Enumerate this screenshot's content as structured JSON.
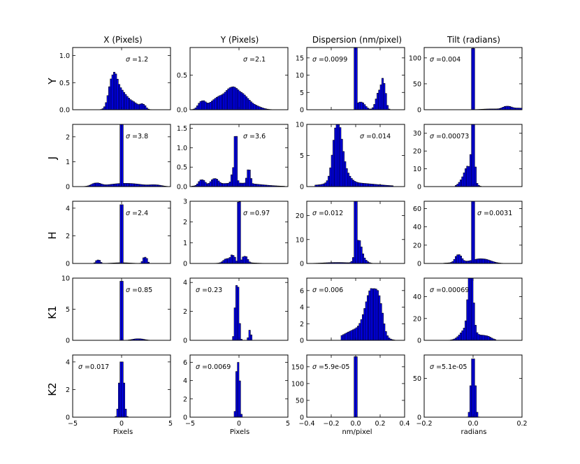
{
  "figure": {
    "column_titles": [
      "X (Pixels)",
      "Y (Pixels)",
      "Dispersion (nm/pixel)",
      "Tilt (radians)"
    ],
    "row_labels": [
      "Y",
      "J",
      "H",
      "K1",
      "K2"
    ],
    "x_axis_labels": [
      "Pixels",
      "Pixels",
      "nm/pixel",
      "radians"
    ],
    "x_tick_labels": [
      [
        "−5",
        "0",
        "5"
      ],
      [
        "−5",
        "0",
        "5"
      ],
      [
        "−0.4",
        "−0.2",
        "0.0",
        "0.2",
        "0.4"
      ],
      [
        "−0.2",
        "0.0",
        "0.2"
      ]
    ],
    "sigma_symbol": "σ",
    "colors": {
      "fill": "#0000ff",
      "edge": "#000000",
      "frame": "#000000",
      "background": "#ffffff"
    }
  },
  "chart_data": [
    {
      "type": "bar",
      "row": "Y",
      "column": "X (Pixels)",
      "xlim": [
        -5,
        5
      ],
      "ylim": [
        0,
        1.15
      ],
      "yticks": [
        "0.0",
        "0.5",
        "1.0"
      ],
      "ytick_values": [
        0,
        0.5,
        1.0
      ],
      "sigma": "=1.2",
      "components": [
        {
          "mu": -0.9,
          "s": 0.35,
          "a": 0.45
        },
        {
          "mu": -0.3,
          "s": 0.55,
          "a": 0.3
        },
        {
          "mu": 0.9,
          "s": 0.7,
          "a": 0.15
        },
        {
          "mu": 2.2,
          "s": 0.2,
          "a": 0.07
        }
      ],
      "range": [
        -3,
        3.6
      ]
    },
    {
      "type": "bar",
      "row": "Y",
      "column": "Y (Pixels)",
      "xlim": [
        -5,
        5
      ],
      "ylim": [
        0,
        0.9
      ],
      "yticks": [
        "0.0",
        "0.5"
      ],
      "ytick_values": [
        0,
        0.5
      ],
      "sigma": "=2.1",
      "components": [
        {
          "mu": -3.8,
          "s": 0.3,
          "a": 0.1
        },
        {
          "mu": -1.7,
          "s": 1.0,
          "a": 0.2
        },
        {
          "mu": -0.8,
          "s": 0.4,
          "a": 0.08
        },
        {
          "mu": 0.1,
          "s": 0.7,
          "a": 0.2
        },
        {
          "mu": 1.5,
          "s": 0.7,
          "a": 0.05
        }
      ],
      "range": [
        -4.7,
        3.5
      ]
    },
    {
      "type": "bar",
      "row": "Y",
      "column": "Dispersion (nm/pixel)",
      "xlim": [
        -0.4,
        0.4
      ],
      "ylim": [
        0,
        18
      ],
      "yticks": [
        "0",
        "5",
        "10",
        "15"
      ],
      "ytick_values": [
        0,
        5,
        10,
        15
      ],
      "sigma": "=0.0099",
      "components": [
        {
          "mu": 0.0,
          "s": 0.002,
          "a": 17
        },
        {
          "mu": 0.04,
          "s": 0.03,
          "a": 2.2
        },
        {
          "mu": 0.2,
          "s": 0.025,
          "a": 5.5
        },
        {
          "mu": 0.23,
          "s": 0.012,
          "a": 4.5
        }
      ],
      "range": [
        -0.01,
        0.27
      ]
    },
    {
      "type": "bar",
      "row": "Y",
      "column": "Tilt (radians)",
      "xlim": [
        -0.2,
        0.2
      ],
      "ylim": [
        0,
        120
      ],
      "yticks": [
        "0",
        "50",
        "100"
      ],
      "ytick_values": [
        0,
        50,
        100
      ],
      "sigma": "=0.004",
      "components": [
        {
          "mu": 0.0,
          "s": 0.0012,
          "a": 118
        },
        {
          "mu": 0.14,
          "s": 0.015,
          "a": 6
        },
        {
          "mu": 0.19,
          "s": 0.02,
          "a": 3
        },
        {
          "mu": 0.08,
          "s": 0.04,
          "a": 1.5
        }
      ],
      "range": [
        -0.01,
        0.2
      ]
    },
    {
      "type": "bar",
      "row": "J",
      "column": "X (Pixels)",
      "xlim": [
        -5,
        5
      ],
      "ylim": [
        0,
        2.5
      ],
      "yticks": [
        "0",
        "1",
        "2"
      ],
      "ytick_values": [
        0,
        1,
        2
      ],
      "sigma": "=3.8",
      "components": [
        {
          "mu": 0.0,
          "s": 0.02,
          "a": 2.45
        },
        {
          "mu": -2.6,
          "s": 0.4,
          "a": 0.12
        },
        {
          "mu": 0.4,
          "s": 1.6,
          "a": 0.13
        },
        {
          "mu": 3.5,
          "s": 0.5,
          "a": 0.05
        }
      ],
      "range": [
        -4.8,
        4.6
      ]
    },
    {
      "type": "bar",
      "row": "J",
      "column": "Y (Pixels)",
      "xlim": [
        -5,
        5
      ],
      "ylim": [
        0,
        1.6
      ],
      "yticks": [
        "0.0",
        "0.5",
        "1.0",
        "1.5"
      ],
      "ytick_values": [
        0,
        0.5,
        1.0,
        1.5
      ],
      "sigma": "=3.6",
      "components": [
        {
          "mu": -0.3,
          "s": 0.05,
          "a": 1.0
        },
        {
          "mu": -0.5,
          "s": 0.15,
          "a": 0.4
        },
        {
          "mu": 1.0,
          "s": 0.12,
          "a": 0.35
        },
        {
          "mu": -2.5,
          "s": 0.3,
          "a": 0.15
        },
        {
          "mu": -3.8,
          "s": 0.25,
          "a": 0.15
        },
        {
          "mu": -0.2,
          "s": 2.2,
          "a": 0.09
        }
      ],
      "range": [
        -4.7,
        4.5
      ]
    },
    {
      "type": "bar",
      "row": "J",
      "column": "Dispersion (nm/pixel)",
      "xlim": [
        -0.4,
        0.4
      ],
      "ylim": [
        0,
        10
      ],
      "yticks": [
        "0",
        "5",
        "10"
      ],
      "ytick_values": [
        0,
        5,
        10
      ],
      "sigma": "=0.014",
      "components": [
        {
          "mu": -0.15,
          "s": 0.03,
          "a": 7.5
        },
        {
          "mu": -0.12,
          "s": 0.05,
          "a": 2.5
        },
        {
          "mu": -0.05,
          "s": 0.2,
          "a": 0.6
        }
      ],
      "range": [
        -0.33,
        0.3
      ]
    },
    {
      "type": "bar",
      "row": "J",
      "column": "Tilt (radians)",
      "xlim": [
        -0.2,
        0.2
      ],
      "ylim": [
        0,
        35
      ],
      "yticks": [
        "0",
        "10",
        "20",
        "30"
      ],
      "ytick_values": [
        0,
        10,
        20,
        30
      ],
      "sigma": "=0.00073",
      "components": [
        {
          "mu": 0.0,
          "s": 0.004,
          "a": 30
        },
        {
          "mu": -0.015,
          "s": 0.015,
          "a": 10
        },
        {
          "mu": -0.04,
          "s": 0.015,
          "a": 3
        }
      ],
      "range": [
        -0.07,
        0.03
      ]
    },
    {
      "type": "bar",
      "row": "H",
      "column": "X (Pixels)",
      "xlim": [
        -5,
        5
      ],
      "ylim": [
        0,
        4.5
      ],
      "yticks": [
        "0",
        "2",
        "4"
      ],
      "ytick_values": [
        0,
        2,
        4
      ],
      "sigma": "=2.4",
      "components": [
        {
          "mu": 0.0,
          "s": 0.02,
          "a": 4.2
        },
        {
          "mu": -2.4,
          "s": 0.15,
          "a": 0.25
        },
        {
          "mu": 2.4,
          "s": 0.15,
          "a": 0.45
        },
        {
          "mu": 0.0,
          "s": 0.8,
          "a": 0.05
        }
      ],
      "range": [
        -3.5,
        3.5
      ]
    },
    {
      "type": "bar",
      "row": "H",
      "column": "Y (Pixels)",
      "xlim": [
        -5,
        5
      ],
      "ylim": [
        0,
        3
      ],
      "yticks": [
        "0",
        "1",
        "2",
        "3"
      ],
      "ytick_values": [
        0,
        1,
        2,
        3
      ],
      "sigma": "=0.97",
      "components": [
        {
          "mu": 0.0,
          "s": 0.02,
          "a": 2.9
        },
        {
          "mu": -0.6,
          "s": 0.15,
          "a": 0.3
        },
        {
          "mu": 0.6,
          "s": 0.2,
          "a": 0.3
        },
        {
          "mu": -1.2,
          "s": 0.3,
          "a": 0.2
        },
        {
          "mu": 0.0,
          "s": 1.2,
          "a": 0.05
        }
      ],
      "range": [
        -3.5,
        3.5
      ]
    },
    {
      "type": "bar",
      "row": "H",
      "column": "Dispersion (nm/pixel)",
      "xlim": [
        -0.4,
        0.4
      ],
      "ylim": [
        0,
        26
      ],
      "yticks": [
        "0",
        "10",
        "20"
      ],
      "ytick_values": [
        0,
        10,
        20
      ],
      "sigma": "=0.012",
      "components": [
        {
          "mu": 0.0,
          "s": 0.004,
          "a": 25
        },
        {
          "mu": 0.02,
          "s": 0.02,
          "a": 8
        },
        {
          "mu": 0.05,
          "s": 0.03,
          "a": 2
        },
        {
          "mu": -0.15,
          "s": 0.1,
          "a": 0.4
        }
      ],
      "range": [
        -0.38,
        0.28
      ]
    },
    {
      "type": "bar",
      "row": "H",
      "column": "Tilt (radians)",
      "xlim": [
        -0.2,
        0.2
      ],
      "ylim": [
        0,
        68
      ],
      "yticks": [
        "0",
        "20",
        "40",
        "60"
      ],
      "ytick_values": [
        0,
        20,
        40,
        60
      ],
      "sigma": "=0.0031",
      "components": [
        {
          "mu": 0.0,
          "s": 0.0015,
          "a": 68
        },
        {
          "mu": -0.06,
          "s": 0.01,
          "a": 8
        },
        {
          "mu": 0.04,
          "s": 0.03,
          "a": 4
        },
        {
          "mu": -0.02,
          "s": 0.05,
          "a": 2
        }
      ],
      "range": [
        -0.12,
        0.18
      ]
    },
    {
      "type": "bar",
      "row": "K1",
      "column": "X (Pixels)",
      "xlim": [
        -5,
        5
      ],
      "ylim": [
        0,
        10
      ],
      "yticks": [
        "0",
        "5",
        "10"
      ],
      "ytick_values": [
        0,
        5,
        10
      ],
      "sigma": "=0.85",
      "components": [
        {
          "mu": 0.0,
          "s": 0.02,
          "a": 9.5
        },
        {
          "mu": 1.7,
          "s": 0.5,
          "a": 0.25
        }
      ],
      "range": [
        -0.5,
        3.2
      ]
    },
    {
      "type": "bar",
      "row": "K1",
      "column": "Y (Pixels)",
      "xlim": [
        -5,
        5
      ],
      "ylim": [
        0,
        4.3
      ],
      "yticks": [
        "0",
        "2",
        "4"
      ],
      "ytick_values": [
        0,
        2,
        4
      ],
      "sigma": "=0.23",
      "components": [
        {
          "mu": -0.2,
          "s": 0.13,
          "a": 3.8
        },
        {
          "mu": 1.1,
          "s": 0.06,
          "a": 0.7
        }
      ],
      "range": [
        -0.9,
        1.4
      ]
    },
    {
      "type": "bar",
      "row": "K1",
      "column": "Dispersion (nm/pixel)",
      "xlim": [
        -0.4,
        0.4
      ],
      "ylim": [
        0,
        7.5
      ],
      "yticks": [
        "0",
        "2",
        "4",
        "6"
      ],
      "ytick_values": [
        0,
        2,
        4,
        6
      ],
      "sigma": "=0.006",
      "components": [
        {
          "mu": 0.14,
          "s": 0.05,
          "a": 5.5
        },
        {
          "mu": 0.2,
          "s": 0.02,
          "a": 1.5
        },
        {
          "mu": 0.02,
          "s": 0.1,
          "a": 1.3
        }
      ],
      "range": [
        -0.12,
        0.32
      ]
    },
    {
      "type": "bar",
      "row": "K1",
      "column": "Tilt (radians)",
      "xlim": [
        -0.2,
        0.2
      ],
      "ylim": [
        0,
        57
      ],
      "yticks": [
        "0",
        "20",
        "40"
      ],
      "ytick_values": [
        0,
        20,
        40
      ],
      "sigma": "=0.00069",
      "components": [
        {
          "mu": -0.01,
          "s": 0.008,
          "a": 55
        },
        {
          "mu": -0.02,
          "s": 0.025,
          "a": 12
        },
        {
          "mu": 0.05,
          "s": 0.02,
          "a": 4
        }
      ],
      "range": [
        -0.17,
        0.09
      ]
    },
    {
      "type": "bar",
      "row": "K2",
      "column": "X (Pixels)",
      "xlim": [
        -5,
        5
      ],
      "ylim": [
        0,
        4.5
      ],
      "yticks": [
        "0",
        "2",
        "4"
      ],
      "ytick_values": [
        0,
        2,
        4
      ],
      "sigma": "=0.017",
      "components": [
        {
          "mu": 0.0,
          "s": 0.17,
          "a": 4.0
        }
      ],
      "range": [
        -0.8,
        0.8
      ]
    },
    {
      "type": "bar",
      "row": "K2",
      "column": "Y (Pixels)",
      "xlim": [
        -5,
        5
      ],
      "ylim": [
        0,
        6.8
      ],
      "yticks": [
        "0",
        "2",
        "4",
        "6"
      ],
      "ytick_values": [
        0,
        2,
        4,
        6
      ],
      "sigma": "=0.0069",
      "components": [
        {
          "mu": -0.1,
          "s": 0.11,
          "a": 6.0
        }
      ],
      "range": [
        -0.6,
        0.5
      ]
    },
    {
      "type": "bar",
      "row": "K2",
      "column": "Dispersion (nm/pixel)",
      "xlim": [
        -0.4,
        0.4
      ],
      "ylim": [
        0,
        185
      ],
      "yticks": [
        "0",
        "50",
        "100",
        "150"
      ],
      "ytick_values": [
        0,
        50,
        100,
        150
      ],
      "sigma": "=5.9e-05",
      "components": [
        {
          "mu": 0.0,
          "s": 0.0013,
          "a": 180
        }
      ],
      "range": [
        -0.01,
        0.01
      ]
    },
    {
      "type": "bar",
      "row": "K2",
      "column": "Tilt (radians)",
      "xlim": [
        -0.2,
        0.2
      ],
      "ylim": [
        0,
        80
      ],
      "yticks": [
        "0",
        "50"
      ],
      "ytick_values": [
        0,
        50
      ],
      "sigma": "=5.1e-05",
      "components": [
        {
          "mu": 0.0,
          "s": 0.006,
          "a": 75
        }
      ],
      "range": [
        -0.03,
        0.03
      ]
    }
  ]
}
